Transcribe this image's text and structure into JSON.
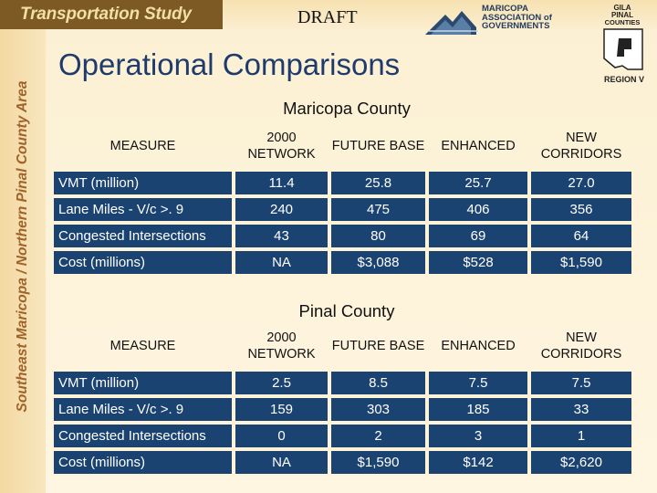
{
  "header": {
    "study_title": "Transportation Study",
    "draft_label": "DRAFT",
    "sidebar_text": "Southeast Maricopa / Northern Pinal County Area",
    "mag_logo_lines": [
      "MARICOPA",
      "ASSOCIATION of",
      "GOVERNMENTS"
    ],
    "gila_logo_lines": [
      "GILA",
      "PINAL",
      "COUNTIES",
      "REGION V"
    ]
  },
  "page_title": "Operational Comparisons",
  "columns": [
    "MEASURE",
    "2000 NETWORK",
    "FUTURE BASE",
    "ENHANCED",
    "NEW CORRIDORS"
  ],
  "sections": [
    {
      "title": "Maricopa County",
      "rows": [
        {
          "measure": "VMT (million)",
          "values": [
            "11.4",
            "25.8",
            "25.7",
            "27.0"
          ]
        },
        {
          "measure": "Lane Miles - V/c >. 9",
          "values": [
            "240",
            "475",
            "406",
            "356"
          ]
        },
        {
          "measure": "Congested Intersections",
          "values": [
            "43",
            "80",
            "69",
            "64"
          ]
        },
        {
          "measure": "Cost (millions)",
          "values": [
            "NA",
            "$3,088",
            "$528",
            "$1,590"
          ]
        }
      ]
    },
    {
      "title": "Pinal County",
      "rows": [
        {
          "measure": "VMT (million)",
          "values": [
            "2.5",
            "8.5",
            "7.5",
            "7.5"
          ]
        },
        {
          "measure": "Lane Miles - V/c >. 9",
          "values": [
            "159",
            "303",
            "185",
            "33"
          ]
        },
        {
          "measure": "Congested Intersections",
          "values": [
            "0",
            "2",
            "3",
            "1"
          ]
        },
        {
          "measure": "Cost (millions)",
          "values": [
            "NA",
            "$1,590",
            "$142",
            "$2,620"
          ]
        }
      ]
    }
  ],
  "colors": {
    "table_cell": "#1b4372",
    "background": "#fdf3d8",
    "title": "#1f3b6d",
    "sidebar_text": "#a0632b",
    "study_tab": "#7d5a23"
  }
}
